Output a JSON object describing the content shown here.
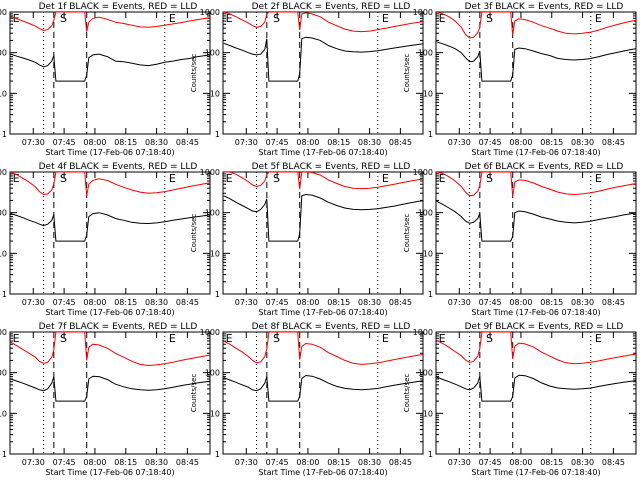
{
  "chart_data": {
    "type": "line",
    "shared": {
      "yscale": "log",
      "ylim": [
        1,
        1000
      ],
      "yticks": [
        "1",
        "10",
        "100",
        "1000"
      ],
      "ylabel": "Counts/sec",
      "xticks": [
        "07:30",
        "07:45",
        "08:00",
        "08:15",
        "08:30",
        "08:45"
      ],
      "xlabel": "Start Time (17-Feb-06 07:18:40)",
      "xlim": [
        "07:18:40",
        "08:56:00"
      ],
      "colors": {
        "events": "#000000",
        "lld": "#ff0000"
      },
      "markers": [
        {
          "time": "07:35",
          "style": "dotted",
          "label": ""
        },
        {
          "time": "07:40",
          "style": "dashed",
          "label": ""
        },
        {
          "time": "07:56",
          "style": "dashed",
          "label": ""
        },
        {
          "time": "08:34",
          "style": "dotted",
          "label": ""
        }
      ],
      "marker_labels": [
        {
          "time": "07:19",
          "label": "E"
        },
        {
          "time": "07:42",
          "label": "S"
        },
        {
          "time": "08:35",
          "label": "E"
        }
      ],
      "time_x": [
        "07:19",
        "07:22",
        "07:25",
        "07:28",
        "07:31",
        "07:33",
        "07:35",
        "07:37",
        "07:39",
        "07:40",
        "07:41",
        "07:43",
        "07:46",
        "07:49",
        "07:52",
        "07:54",
        "07:55",
        "07:56",
        "07:57",
        "07:59",
        "08:02",
        "08:06",
        "08:10",
        "08:14",
        "08:18",
        "08:22",
        "08:26",
        "08:30",
        "08:34",
        "08:38",
        "08:42",
        "08:46",
        "08:50",
        "08:54",
        "08:56"
      ]
    },
    "panels": [
      {
        "title": "Det 1f BLACK = Events, RED = LLD",
        "series": [
          {
            "name": "BLACK = Events",
            "values": [
              92,
              82,
              74,
              66,
              58,
              50,
              45,
              48,
              62,
              85,
              20,
              20,
              20,
              20,
              20,
              20,
              20,
              28,
              75,
              88,
              92,
              80,
              62,
              60,
              55,
              50,
              48,
              52,
              58,
              62,
              68,
              72,
              80,
              85,
              88
            ]
          },
          {
            "name": "RED = LLD",
            "values": [
              760,
              680,
              600,
              520,
              450,
              390,
              350,
              370,
              460,
              620,
              1000,
              1000,
              1000,
              1000,
              1000,
              1000,
              1000,
              330,
              560,
              700,
              750,
              660,
              560,
              520,
              470,
              430,
              420,
              440,
              470,
              510,
              550,
              600,
              650,
              700,
              720
            ]
          }
        ]
      },
      {
        "title": "Det 2f BLACK = Events, RED = LLD",
        "series": [
          {
            "name": "BLACK = Events",
            "values": [
              170,
              150,
              130,
              115,
              100,
              92,
              88,
              92,
              120,
              220,
              20,
              20,
              20,
              20,
              20,
              20,
              20,
              30,
              220,
              240,
              230,
              200,
              150,
              125,
              110,
              105,
              103,
              106,
              112,
              120,
              130,
              140,
              150,
              160,
              165
            ]
          },
          {
            "name": "RED = LLD",
            "values": [
              1000,
              900,
              760,
              640,
              540,
              460,
              420,
              440,
              560,
              880,
              1000,
              1000,
              1000,
              1000,
              1000,
              1000,
              1000,
              360,
              900,
              950,
              900,
              760,
              560,
              460,
              380,
              340,
              330,
              340,
              370,
              400,
              440,
              480,
              520,
              560,
              580
            ]
          }
        ]
      },
      {
        "title": "Det 3f BLACK = Events, RED = LLD",
        "series": [
          {
            "name": "BLACK = Events",
            "values": [
              185,
              165,
              145,
              125,
              100,
              75,
              60,
              62,
              80,
              110,
              20,
              20,
              20,
              20,
              20,
              20,
              20,
              28,
              120,
              130,
              125,
              110,
              95,
              85,
              72,
              68,
              66,
              68,
              72,
              80,
              90,
              100,
              110,
              120,
              125
            ]
          },
          {
            "name": "RED = LLD",
            "values": [
              1000,
              900,
              760,
              600,
              420,
              280,
              230,
              240,
              310,
              420,
              1000,
              1000,
              1000,
              1000,
              1000,
              1000,
              1000,
              270,
              600,
              680,
              650,
              560,
              460,
              400,
              340,
              300,
              290,
              300,
              320,
              360,
              420,
              480,
              540,
              600,
              620
            ]
          }
        ]
      },
      {
        "title": "Det 4f BLACK = Events, RED = LLD",
        "series": [
          {
            "name": "BLACK = Events",
            "values": [
              95,
              85,
              75,
              65,
              58,
              52,
              48,
              52,
              65,
              90,
              20,
              20,
              20,
              20,
              20,
              20,
              20,
              28,
              80,
              95,
              100,
              88,
              72,
              65,
              58,
              55,
              54,
              56,
              60,
              65,
              70,
              75,
              80,
              85,
              88
            ]
          },
          {
            "name": "RED = LLD",
            "values": [
              1000,
              860,
              700,
              560,
              430,
              330,
              280,
              290,
              360,
              500,
              1000,
              1000,
              1000,
              1000,
              1000,
              1000,
              1000,
              260,
              500,
              620,
              680,
              620,
              500,
              420,
              360,
              320,
              300,
              310,
              330,
              360,
              400,
              440,
              480,
              520,
              540
            ]
          }
        ]
      },
      {
        "title": "Det 5f BLACK = Events, RED = LLD",
        "series": [
          {
            "name": "BLACK = Events",
            "values": [
              260,
              220,
              180,
              150,
              125,
              110,
              105,
              120,
              160,
              220,
              20,
              20,
              20,
              20,
              20,
              20,
              20,
              30,
              260,
              280,
              270,
              230,
              180,
              150,
              130,
              120,
              118,
              120,
              125,
              135,
              145,
              160,
              175,
              190,
              195
            ]
          },
          {
            "name": "RED = LLD",
            "values": [
              1000,
              1000,
              880,
              720,
              580,
              480,
              440,
              470,
              600,
              850,
              1000,
              1000,
              1000,
              1000,
              1000,
              1000,
              1000,
              380,
              1000,
              1000,
              980,
              840,
              640,
              520,
              440,
              400,
              390,
              400,
              420,
              460,
              500,
              550,
              600,
              650,
              670
            ]
          }
        ]
      },
      {
        "title": "Det 6f BLACK = Events, RED = LLD",
        "series": [
          {
            "name": "BLACK = Events",
            "values": [
              190,
              160,
              130,
              105,
              80,
              62,
              55,
              58,
              72,
              95,
              20,
              20,
              20,
              20,
              20,
              20,
              20,
              26,
              100,
              110,
              105,
              92,
              78,
              70,
              62,
              58,
              56,
              58,
              62,
              68,
              74,
              80,
              88,
              95,
              98
            ]
          },
          {
            "name": "RED = LLD",
            "values": [
              1000,
              920,
              760,
              600,
              440,
              320,
              260,
              270,
              340,
              460,
              1000,
              1000,
              1000,
              1000,
              1000,
              1000,
              1000,
              250,
              560,
              640,
              620,
              540,
              440,
              380,
              320,
              290,
              280,
              290,
              310,
              340,
              380,
              420,
              460,
              500,
              520
            ]
          }
        ]
      },
      {
        "title": "Det 7f BLACK = Events, RED = LLD",
        "series": [
          {
            "name": "BLACK = Events",
            "values": [
              70,
              62,
              55,
              48,
              42,
              38,
              36,
              40,
              55,
              80,
              20,
              20,
              20,
              20,
              20,
              20,
              20,
              26,
              70,
              82,
              80,
              68,
              52,
              45,
              40,
              38,
              37,
              38,
              40,
              44,
              48,
              52,
              56,
              60,
              62
            ]
          },
          {
            "name": "RED = LLD",
            "values": [
              560,
              460,
              370,
              300,
              240,
              190,
              170,
              180,
              240,
              360,
              1000,
              1000,
              1000,
              1000,
              1000,
              1000,
              1000,
              200,
              420,
              500,
              480,
              400,
              300,
              240,
              190,
              160,
              150,
              155,
              165,
              180,
              200,
              220,
              240,
              260,
              270
            ]
          }
        ]
      },
      {
        "title": "Det 8f BLACK = Events, RED = LLD",
        "series": [
          {
            "name": "BLACK = Events",
            "values": [
              75,
              66,
              58,
              50,
              44,
              38,
              36,
              40,
              55,
              80,
              20,
              20,
              20,
              20,
              20,
              20,
              20,
              26,
              72,
              85,
              82,
              70,
              55,
              46,
              41,
              39,
              38,
              39,
              41,
              45,
              49,
              53,
              57,
              61,
              63
            ]
          },
          {
            "name": "RED = LLD",
            "values": [
              600,
              500,
              400,
              320,
              250,
              200,
              175,
              185,
              250,
              380,
              1000,
              1000,
              1000,
              1000,
              1000,
              1000,
              1000,
              210,
              440,
              520,
              500,
              420,
              310,
              250,
              200,
              170,
              160,
              165,
              175,
              190,
              210,
              230,
              250,
              270,
              280
            ]
          }
        ]
      },
      {
        "title": "Det 9f BLACK = Events, RED = LLD",
        "series": [
          {
            "name": "BLACK = Events",
            "values": [
              78,
              68,
              60,
              52,
              45,
              40,
              38,
              42,
              56,
              82,
              20,
              20,
              20,
              20,
              20,
              20,
              20,
              26,
              74,
              86,
              84,
              72,
              56,
              47,
              42,
              40,
              39,
              40,
              42,
              46,
              50,
              54,
              58,
              62,
              64
            ]
          },
          {
            "name": "RED = LLD",
            "values": [
              620,
              520,
              420,
              330,
              260,
              205,
              180,
              190,
              255,
              390,
              1000,
              1000,
              1000,
              1000,
              1000,
              1000,
              1000,
              215,
              450,
              530,
              510,
              430,
              320,
              255,
              205,
              175,
              165,
              170,
              180,
              195,
              215,
              235,
              255,
              275,
              285
            ]
          }
        ]
      }
    ]
  }
}
